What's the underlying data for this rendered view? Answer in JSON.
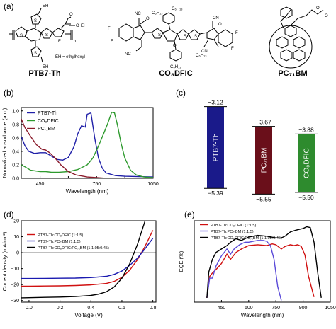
{
  "panel_a": {
    "label": "(a)",
    "ptb7": {
      "name": "PTB7-Th",
      "eh_note": "EH = ethylhexyl",
      "subst": "EH",
      "n": "n",
      "atoms": [
        "O",
        "O",
        "S",
        "S",
        "S",
        "S",
        "F",
        "EH"
      ]
    },
    "co8dfic": {
      "name": "CO₈DFIC",
      "subst": [
        "C₆H₁₃",
        "C₆H₁₃",
        "C₆H₁₃",
        "C₆H₁₃"
      ],
      "atoms": [
        "F",
        "F",
        "F",
        "F",
        "O",
        "O",
        "CN",
        "CN",
        "NC",
        "NC",
        "S",
        "S",
        "S",
        "O"
      ]
    },
    "pc71bm": {
      "name": "PC₇₁BM",
      "atoms": [
        "O",
        "O"
      ]
    }
  },
  "panel_b": {
    "label": "(b)"
  },
  "panel_c": {
    "label": "(c)",
    "bars": [
      {
        "name": "PTB7-Th",
        "top": "−3.12",
        "bottom": "−5.39",
        "color": "#1a1a8a"
      },
      {
        "name": "PC₇₁BM",
        "top": "−3.67",
        "bottom": "−5.55",
        "color": "#6a0f1a"
      },
      {
        "name": "CO₈DFIC",
        "top": "−3.88",
        "bottom": "−5.50",
        "color": "#2e8b2e"
      }
    ]
  },
  "panel_d": {
    "label": "(d)"
  },
  "panel_e": {
    "label": "(e)"
  },
  "chart_data": [
    {
      "type": "line",
      "xlabel": "Wavelength (nm)",
      "ylabel": "Normalized absorbance (a.u.)",
      "xlim": [
        350,
        1050
      ],
      "ylim": [
        0,
        1.05
      ],
      "xticks": [
        "450",
        "750",
        "1050"
      ],
      "xticks_minor_labelless": [
        600,
        900
      ],
      "yticks": [
        "0.0",
        "0.2",
        "0.4",
        "0.6",
        "0.8",
        "1.0"
      ],
      "legend": "top-left",
      "series": [
        {
          "name": "PTB7-Th",
          "color": "#1f1fa8",
          "x": [
            350,
            370,
            390,
            420,
            450,
            480,
            510,
            540,
            570,
            600,
            630,
            650,
            670,
            690,
            700,
            720,
            740,
            760,
            780,
            800,
            850,
            900,
            1050
          ],
          "y": [
            0.62,
            0.48,
            0.4,
            0.37,
            0.38,
            0.38,
            0.33,
            0.28,
            0.27,
            0.31,
            0.47,
            0.66,
            0.78,
            0.76,
            0.95,
            0.97,
            0.6,
            0.3,
            0.15,
            0.08,
            0.04,
            0.03,
            0.02
          ]
        },
        {
          "name": "CO₈DFIC",
          "color": "#2e9a2e",
          "x": [
            350,
            370,
            400,
            450,
            480,
            510,
            550,
            600,
            650,
            700,
            730,
            760,
            790,
            810,
            830,
            845,
            860,
            880,
            900,
            930,
            960,
            1000,
            1050
          ],
          "y": [
            0.2,
            0.17,
            0.12,
            0.1,
            0.1,
            0.09,
            0.09,
            0.1,
            0.13,
            0.2,
            0.3,
            0.48,
            0.68,
            0.82,
            0.98,
            0.97,
            0.8,
            0.52,
            0.3,
            0.12,
            0.05,
            0.02,
            0.01
          ]
        },
        {
          "name": "PC₇₁BM",
          "color": "#8a1a2a",
          "x": [
            350,
            370,
            400,
            430,
            460,
            480,
            500,
            530,
            560,
            600,
            640,
            700,
            750,
            800,
            900,
            1050
          ],
          "y": [
            0.88,
            0.75,
            0.62,
            0.5,
            0.43,
            0.42,
            0.38,
            0.3,
            0.2,
            0.1,
            0.05,
            0.02,
            0.01,
            0.0,
            0.0,
            0.0
          ]
        }
      ]
    },
    {
      "type": "line",
      "xlabel": "Voltage (V)",
      "ylabel": "Current density (mA/cm²)",
      "xlim": [
        -0.05,
        0.82
      ],
      "ylim": [
        -31,
        20
      ],
      "xticks": [
        "0.0",
        "0.2",
        "0.4",
        "0.6",
        "0.8"
      ],
      "yticks": [
        "20",
        "10",
        "0",
        "−10",
        "−20",
        "−30"
      ],
      "legend": "top-left",
      "series": [
        {
          "name": "PTB7-Th:CO₈DFIC (1:1.5)",
          "color": "#d01010",
          "x": [
            -0.05,
            0.0,
            0.1,
            0.2,
            0.3,
            0.4,
            0.5,
            0.55,
            0.6,
            0.65,
            0.7,
            0.75,
            0.8
          ],
          "y": [
            -21.0,
            -21.0,
            -20.9,
            -20.8,
            -20.6,
            -20.2,
            -19.3,
            -18.0,
            -15.5,
            -11.0,
            -4.5,
            4.0,
            14.0
          ]
        },
        {
          "name": "PTB7-Th:PC₇₁BM (1:1.5)",
          "color": "#1a1ab0",
          "x": [
            -0.05,
            0.0,
            0.1,
            0.2,
            0.3,
            0.4,
            0.5,
            0.55,
            0.6,
            0.65,
            0.7,
            0.75,
            0.8
          ],
          "y": [
            -16.2,
            -16.2,
            -16.1,
            -16.0,
            -15.9,
            -15.6,
            -14.8,
            -13.6,
            -11.5,
            -8.0,
            -3.5,
            2.5,
            9.0
          ]
        },
        {
          "name": "PTB7-Th:CO₈DFIC:PC₇₁BM (1:1.05:0.45)",
          "color": "#000000",
          "x": [
            -0.05,
            0.0,
            0.1,
            0.2,
            0.3,
            0.4,
            0.45,
            0.5,
            0.55,
            0.6,
            0.65,
            0.7,
            0.75
          ],
          "y": [
            -28.3,
            -28.2,
            -28.0,
            -27.8,
            -27.5,
            -26.8,
            -26.0,
            -24.5,
            -21.5,
            -16.0,
            -7.0,
            5.0,
            20.0
          ]
        }
      ]
    },
    {
      "type": "line",
      "xlabel": "Wavelength (nm)",
      "ylabel": "EQE (%)",
      "xlim": [
        300,
        1050
      ],
      "ylim": [
        0,
        95
      ],
      "xticks": [
        "450",
        "600",
        "750",
        "900",
        "1050"
      ],
      "yticks": [],
      "legend": "top-left",
      "series": [
        {
          "name": "PTB7-Th:CO₈DFIC (1:1.5)",
          "color": "#d01010",
          "x": [
            370,
            385,
            400,
            420,
            450,
            480,
            500,
            530,
            560,
            600,
            650,
            700,
            730,
            750,
            780,
            800,
            830,
            850,
            870,
            890,
            910,
            930,
            960
          ],
          "y": [
            5,
            30,
            34,
            38,
            45,
            56,
            50,
            58,
            62,
            66,
            67,
            66,
            68,
            67,
            62,
            65,
            67,
            66,
            67,
            65,
            55,
            30,
            6
          ]
        },
        {
          "name": "PTB7-Th:PC₇₁BM (1:1.5)",
          "color": "#5a4ad8",
          "x": [
            370,
            385,
            400,
            420,
            450,
            480,
            500,
            520,
            550,
            580,
            600,
            650,
            680,
            700,
            720,
            740,
            760,
            780
          ],
          "y": [
            5,
            28,
            28,
            42,
            54,
            62,
            56,
            62,
            67,
            70,
            70,
            72,
            72,
            71,
            66,
            50,
            18,
            2
          ]
        },
        {
          "name": "PTB7-Th:CO₈DFIC:PC₇₁BM (1:1.05:0.45)",
          "color": "#000000",
          "x": [
            370,
            380,
            400,
            420,
            450,
            480,
            500,
            530,
            560,
            600,
            650,
            700,
            750,
            780,
            800,
            830,
            860,
            880,
            900,
            920,
            940,
            960,
            980,
            1000
          ],
          "y": [
            5,
            35,
            50,
            58,
            62,
            66,
            70,
            74,
            72,
            76,
            78,
            77,
            75,
            75,
            77,
            82,
            84,
            85,
            86,
            88,
            87,
            70,
            35,
            5
          ]
        }
      ]
    }
  ]
}
